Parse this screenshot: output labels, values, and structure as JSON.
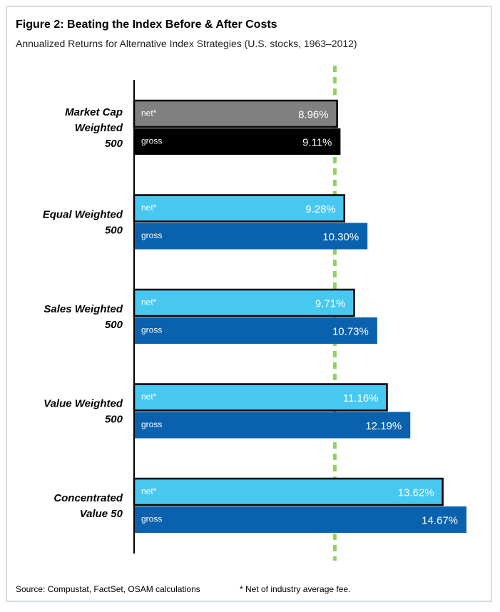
{
  "figure": {
    "title": "Figure 2: Beating the Index Before & After Costs",
    "subtitle": "Annualized Returns for Alternative Index Strategies (U.S. stocks, 1963–2012)",
    "source": "Source: Compustat, FactSet, OSAM calculations",
    "footnote": "* Net of industry average fee."
  },
  "chart_data": {
    "type": "bar",
    "orientation": "horizontal",
    "title": "Figure 2: Beating the Index Before & After Costs",
    "subtitle": "Annualized Returns for Alternative Index Strategies (U.S. stocks, 1963–2012)",
    "categories": [
      [
        "Market Cap",
        "Weighted",
        "500"
      ],
      [
        "Equal Weighted",
        "500"
      ],
      [
        "Sales Weighted",
        "500"
      ],
      [
        "Value Weighted",
        "500"
      ],
      [
        "Concentrated",
        "Value 50"
      ]
    ],
    "series": [
      {
        "name": "net*",
        "values": [
          8.96,
          9.28,
          9.71,
          11.16,
          13.62
        ],
        "labels": [
          "8.96%",
          "9.28%",
          "9.71%",
          "11.16%",
          "13.62%"
        ],
        "colors": [
          "#808080",
          "#47c8f0",
          "#47c8f0",
          "#47c8f0",
          "#47c8f0"
        ]
      },
      {
        "name": "gross",
        "values": [
          9.11,
          10.3,
          10.73,
          12.19,
          14.67
        ],
        "labels": [
          "9.11%",
          "10.30%",
          "10.73%",
          "12.19%",
          "14.67%"
        ],
        "colors": [
          "#000000",
          "#0a62ae",
          "#0a62ae",
          "#0a62ae",
          "#0a62ae"
        ]
      }
    ],
    "reference_line": {
      "value": 9.11,
      "style": "dotted",
      "color": "#8fd45a"
    },
    "xlim": [
      0,
      14.67
    ],
    "x_axis_visible": false,
    "grid": false,
    "colors": {
      "outline": "#000000",
      "reference": "#8fd45a",
      "frame_border": "#d2dce4"
    }
  }
}
